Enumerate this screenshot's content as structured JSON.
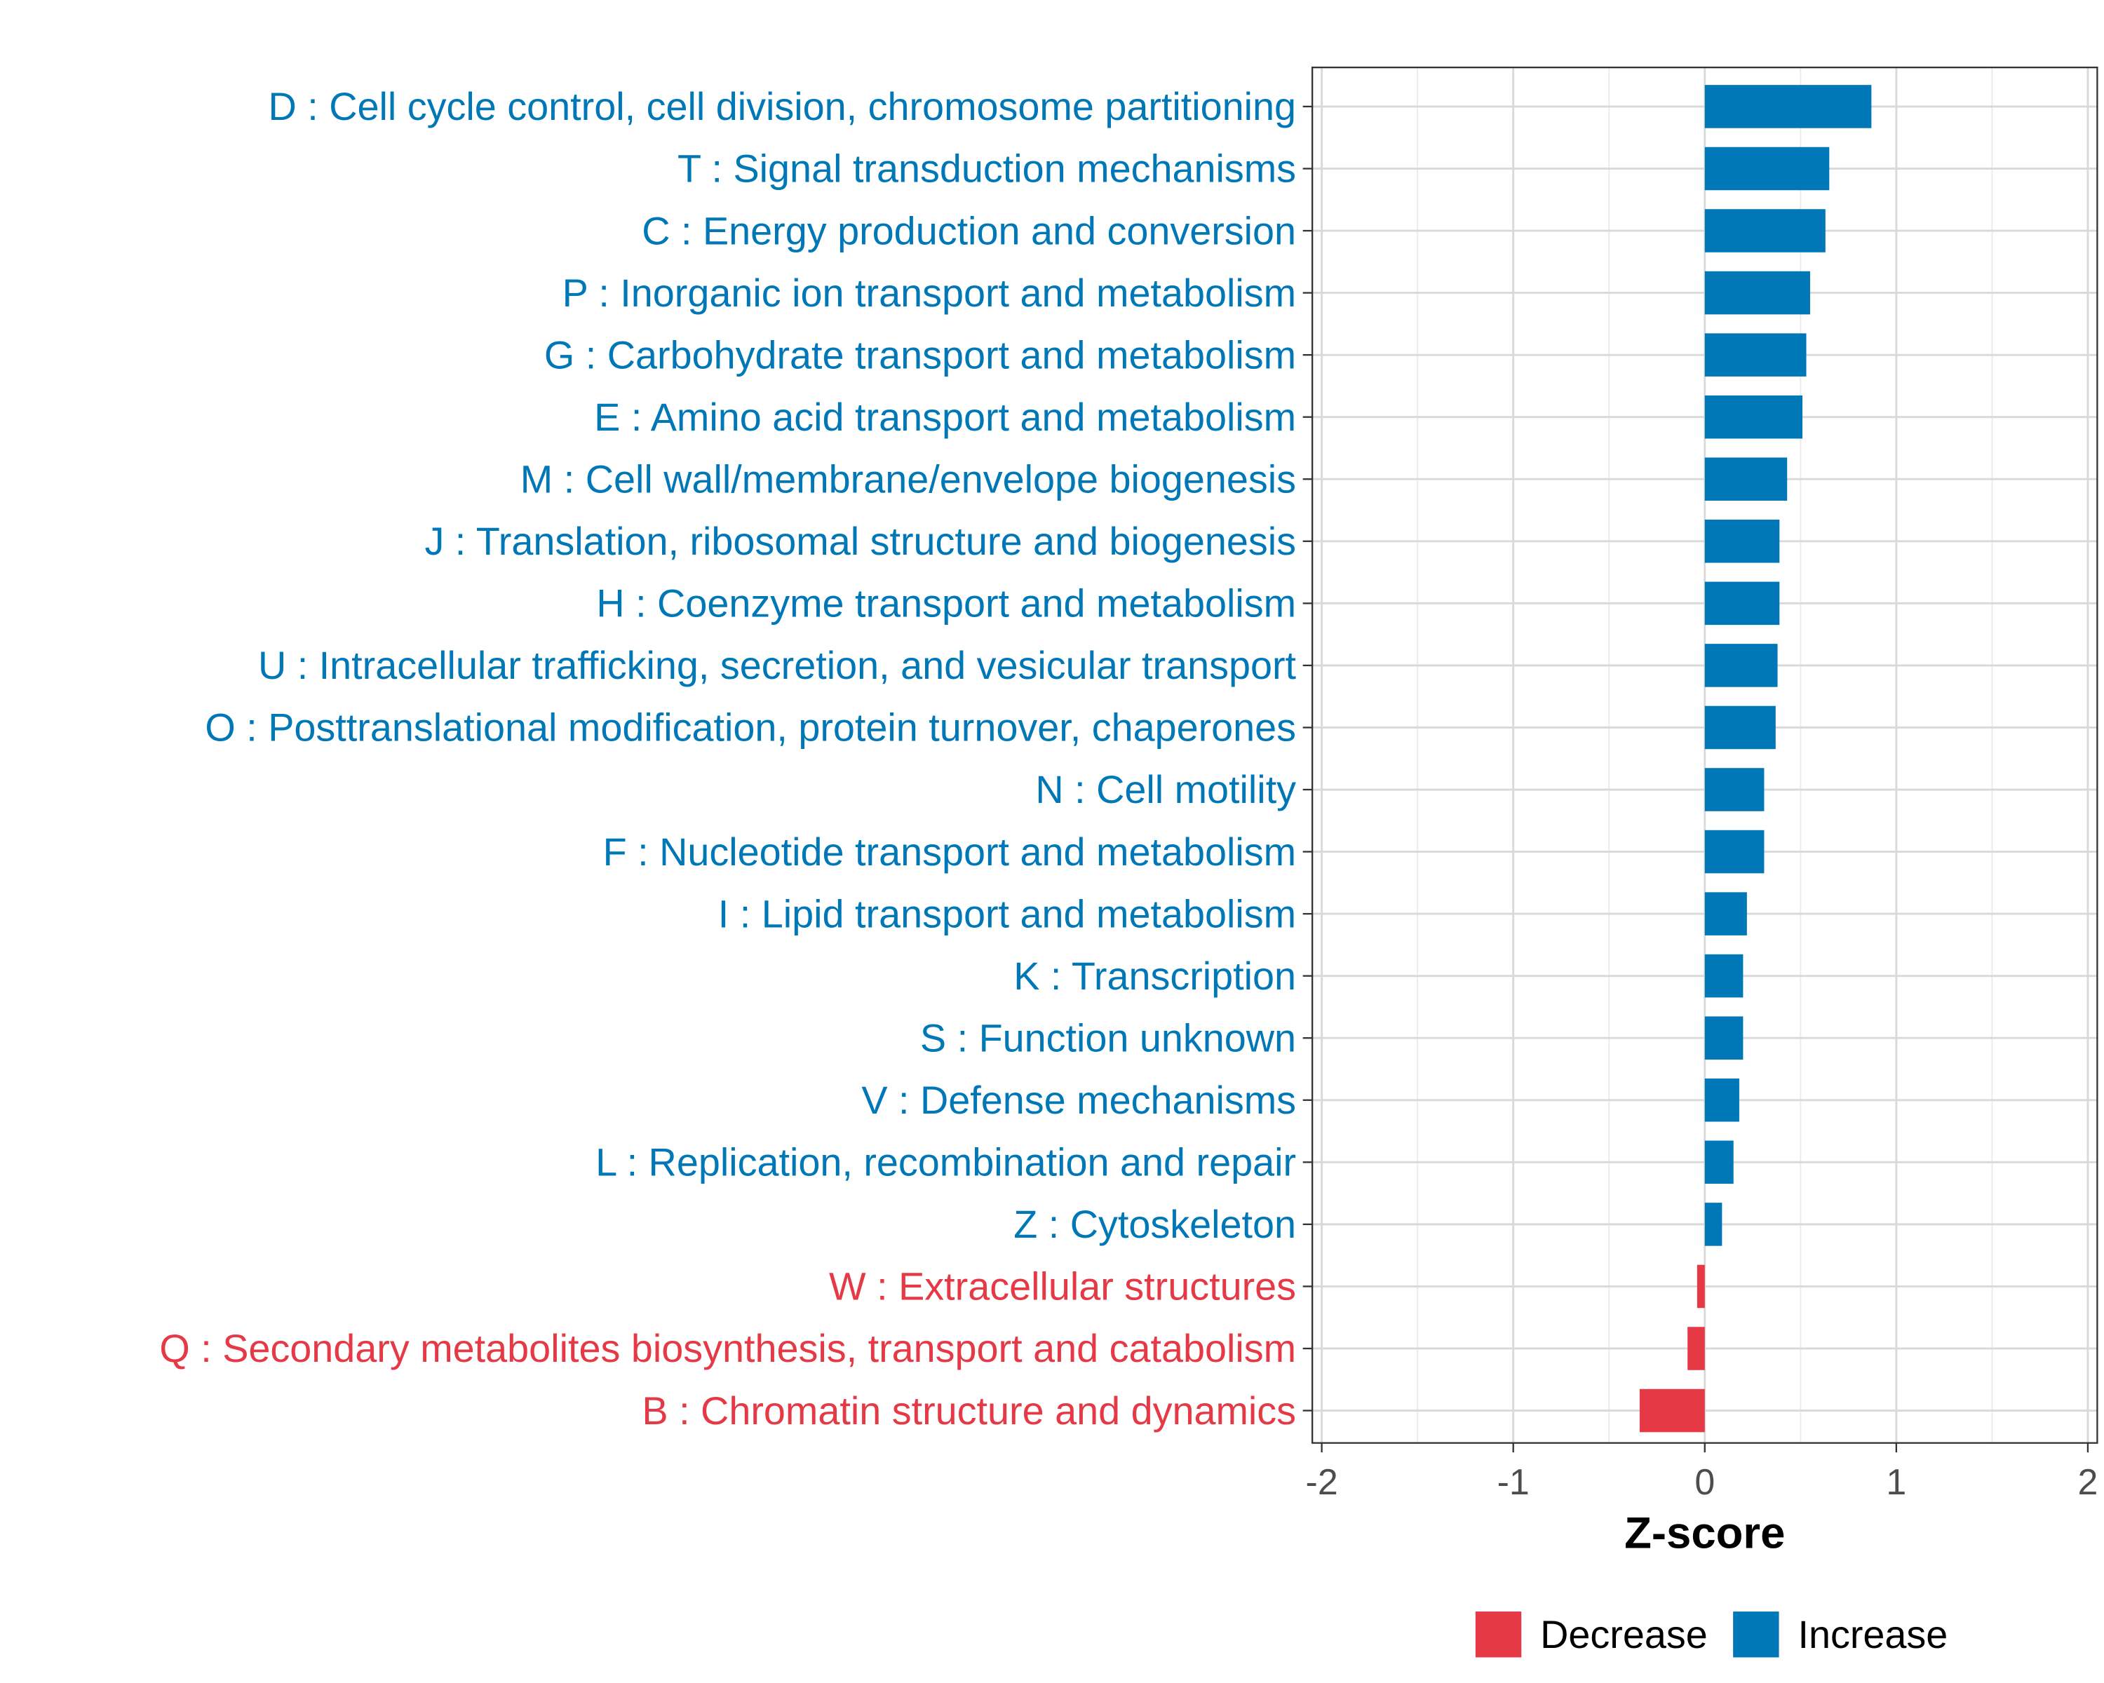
{
  "chart_data": {
    "type": "bar",
    "orientation": "horizontal",
    "title": "",
    "xlabel": "Z-score",
    "ylabel": "",
    "xlim": [
      -2.05,
      2.05
    ],
    "xticks": [
      -2,
      -1,
      0,
      1,
      2
    ],
    "xtick_labels": [
      "-2",
      "-1",
      "0",
      "1",
      "2"
    ],
    "grid": true,
    "categories": [
      "D : Cell cycle control, cell division, chromosome partitioning",
      "T : Signal transduction mechanisms",
      "C : Energy production and conversion",
      "P : Inorganic ion transport and metabolism",
      "G : Carbohydrate transport and metabolism",
      "E : Amino acid transport and metabolism",
      "M : Cell wall/membrane/envelope biogenesis",
      "J : Translation, ribosomal structure and biogenesis",
      "H : Coenzyme transport and metabolism",
      "U : Intracellular trafficking, secretion, and vesicular transport",
      "O : Posttranslational modification, protein turnover, chaperones",
      "N : Cell motility",
      "F : Nucleotide transport and metabolism",
      "I : Lipid transport and metabolism",
      "K : Transcription",
      "S : Function unknown",
      "V : Defense mechanisms",
      "L : Replication, recombination and repair",
      "Z : Cytoskeleton",
      "W : Extracellular structures",
      "Q : Secondary metabolites biosynthesis, transport and catabolism",
      "B : Chromatin structure and dynamics"
    ],
    "values": [
      0.87,
      0.65,
      0.63,
      0.55,
      0.53,
      0.51,
      0.43,
      0.39,
      0.39,
      0.38,
      0.37,
      0.31,
      0.31,
      0.22,
      0.2,
      0.2,
      0.18,
      0.15,
      0.09,
      -0.04,
      -0.09,
      -0.34
    ],
    "legend": {
      "placement": "bottom",
      "entries": [
        {
          "label": "Decrease",
          "color": "#E63946"
        },
        {
          "label": "Increase",
          "color": "#0077B6"
        }
      ]
    }
  }
}
